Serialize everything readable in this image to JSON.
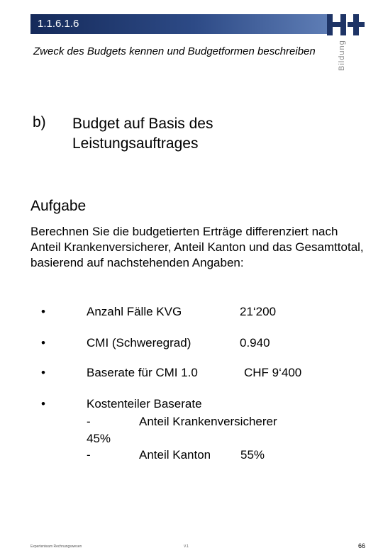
{
  "header": {
    "section_number": "1.1.6.1.6",
    "subtitle": "Zweck des Budgets kennen und Budgetformen beschreiben",
    "logo_text": "H+",
    "logo_side_text": "Bildung"
  },
  "item": {
    "letter": "b)",
    "title": "Budget auf Basis des Leistungsauftrages"
  },
  "task": {
    "heading": "Aufgabe",
    "text": "Berechnen Sie die budgetierten Erträge differenziert nach Anteil Krankenversicherer, Anteil Kanton und das Gesamttotal, basierend auf nachstehenden Angaben:"
  },
  "bullets": [
    {
      "symbol": "•",
      "label": "Anzahl Fälle KVG",
      "value": "21‘200"
    },
    {
      "symbol": "•",
      "label": "CMI (Schweregrad)",
      "value": "0.940"
    },
    {
      "symbol": "•",
      "label": "Baserate für CMI 1.0",
      "value": "CHF 9‘400"
    }
  ],
  "kostenteiler": {
    "symbol": "•",
    "label": "Kostenteiler Baserate",
    "dash": "-",
    "kv_label": "Anteil Krankenversicherer",
    "kv_pct": "45%",
    "kanton_label": "Anteil Kanton",
    "kanton_pct": "55%"
  },
  "footer": {
    "left": "Expertenteam Rechnungswesen",
    "mid": "V.1",
    "page": "66"
  },
  "colors": {
    "bar_dark": "#152a5a",
    "bar_light": "#5e7db5",
    "logo": "#1e3466"
  }
}
